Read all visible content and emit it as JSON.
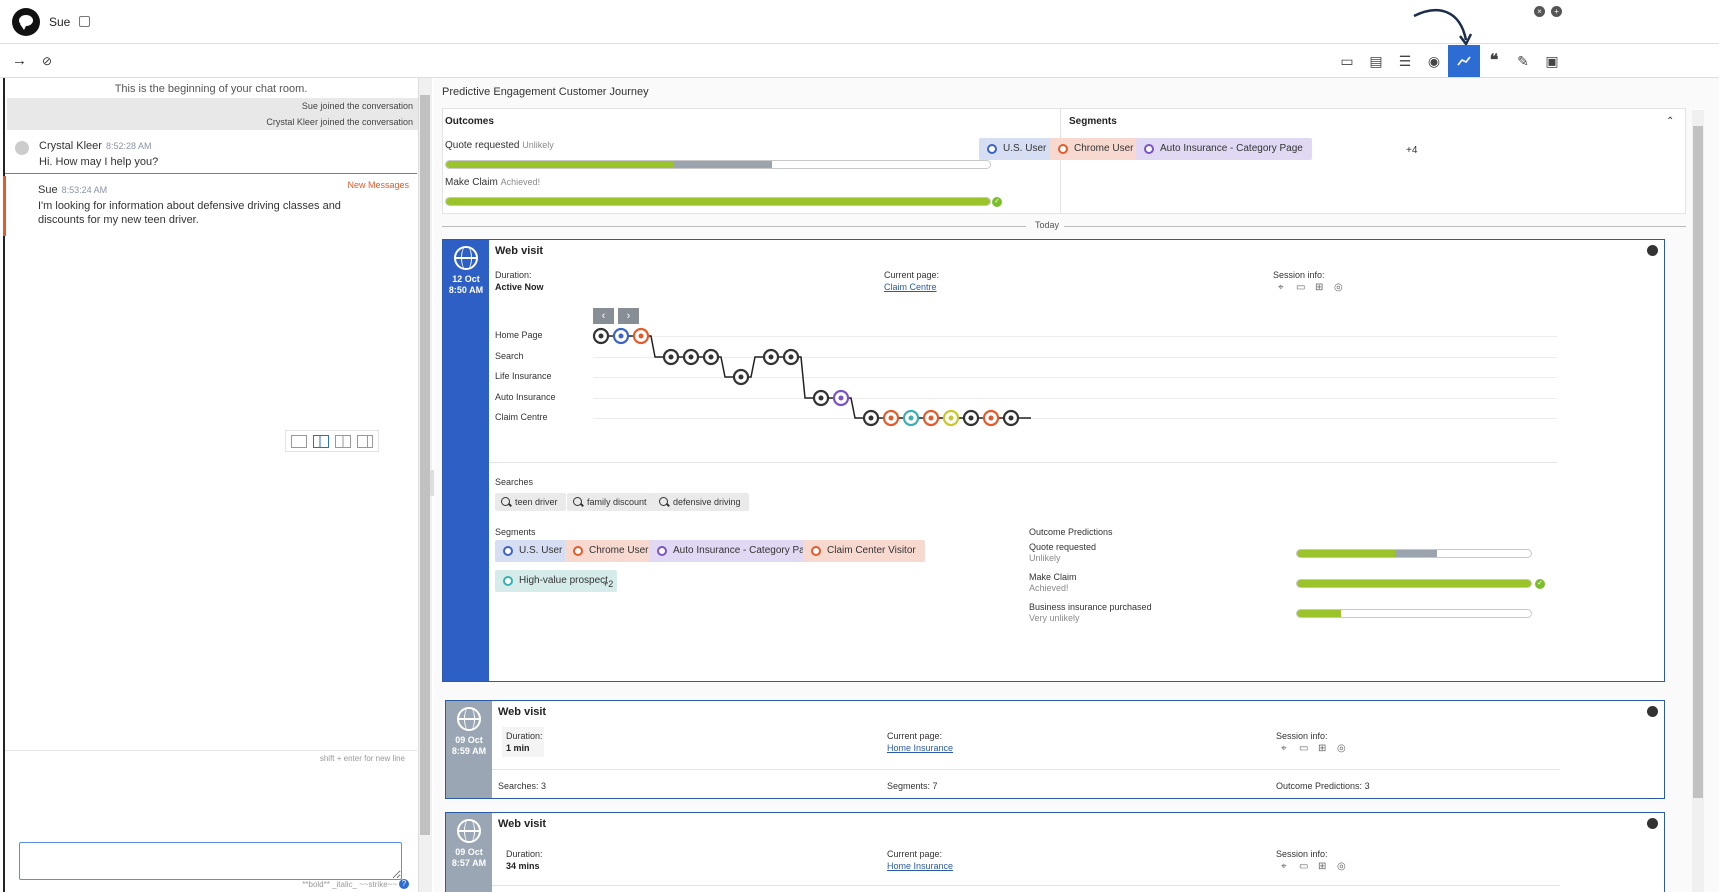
{
  "header": {
    "name": "Sue",
    "close_icon": "×",
    "add_icon": "+"
  },
  "toolbar": {
    "forward_icon": "→",
    "hide_icon": "⊘",
    "icons": [
      "monitor-icon",
      "card-icon",
      "contacts-icon",
      "profile-icon",
      "journey-icon",
      "quote-icon",
      "edit-icon",
      "clipboard-icon"
    ],
    "active": "journey-icon"
  },
  "chat": {
    "beginning": "This is the beginning of your chat room.",
    "system": [
      "Sue joined the conversation",
      "Crystal Kleer joined the conversation"
    ],
    "messages": [
      {
        "who": "Crystal Kleer",
        "time": "8:52:28 AM",
        "text": "Hi. How may I help you?"
      },
      {
        "who": "Sue",
        "time": "8:53:24 AM",
        "text": "I'm looking for information about defensive driving classes and discounts for my new teen driver.",
        "badge": "New Messages"
      }
    ],
    "hint": "shift + enter for new line",
    "format_hint": "**bold** _italic_ ~~strike~~",
    "help_icon": "?"
  },
  "journey": {
    "title": "Predictive Engagement Customer Journey",
    "outcomes_label": "Outcomes",
    "outcomes": [
      {
        "name": "Quote requested",
        "status": "Unlikely",
        "value": 0.42,
        "secondary": 0.18
      },
      {
        "name": "Make Claim",
        "status": "Achieved!",
        "value": 1.0,
        "achieved": true
      }
    ],
    "segments_label": "Segments",
    "segments": [
      {
        "name": "U.S. User",
        "color": "#3d63c5",
        "bg": "#d5def3"
      },
      {
        "name": "Chrome User",
        "color": "#e55a2a",
        "bg": "#f8d9cf"
      },
      {
        "name": "Auto Insurance - Category Page",
        "color": "#7a53c7",
        "bg": "#e1d8f3"
      }
    ],
    "segments_more": "+4",
    "today": "Today",
    "visit1": {
      "title": "Web visit",
      "date": "12 Oct",
      "time": "8:50 AM",
      "duration_label": "Duration:",
      "duration": "Active Now",
      "page_label": "Current page:",
      "page": "Claim Centre",
      "session_label": "Session info:",
      "rows": [
        "Home Page",
        "Search",
        "Life Insurance",
        "Auto Insurance",
        "Claim Centre"
      ],
      "searches_label": "Searches",
      "searches": [
        "teen driver",
        "family discount",
        "defensive driving"
      ],
      "segments_label": "Segments",
      "segments": [
        {
          "name": "U.S. User",
          "color": "#3d63c5",
          "bg": "#d5def3"
        },
        {
          "name": "Chrome User",
          "color": "#e55a2a",
          "bg": "#f8d9cf"
        },
        {
          "name": "Auto Insurance - Category Page",
          "color": "#7a53c7",
          "bg": "#e1d8f3"
        },
        {
          "name": "Claim Center Visitor",
          "color": "#e55a2a",
          "bg": "#f8d9cf"
        },
        {
          "name": "High-value prospect",
          "color": "#3ab0b0",
          "bg": "#d5eceb"
        }
      ],
      "segments_more": "+2",
      "predictions_label": "Outcome Predictions",
      "predictions": [
        {
          "name": "Quote requested",
          "status": "Unlikely",
          "value": 0.42,
          "secondary": 0.18
        },
        {
          "name": "Make Claim",
          "status": "Achieved!",
          "value": 1.0,
          "achieved": true
        },
        {
          "name": "Business insurance purchased",
          "status": "Very unlikely",
          "value": 0.19
        }
      ]
    },
    "visit2": {
      "title": "Web visit",
      "date": "09 Oct",
      "time": "8:59 AM",
      "duration_label": "Duration:",
      "duration": "1 min",
      "page_label": "Current page:",
      "page": "Home Insurance",
      "session_label": "Session info:",
      "searches": "Searches:",
      "searches_n": "3",
      "segments": "Segments:",
      "segments_n": "7",
      "predictions": "Outcome Predictions:",
      "predictions_n": "3"
    },
    "visit3": {
      "title": "Web visit",
      "date": "09 Oct",
      "time": "8:57 AM",
      "duration_label": "Duration:",
      "duration": "34 mins",
      "page_label": "Current page:",
      "page": "Home Insurance",
      "session_label": "Session info:"
    }
  }
}
